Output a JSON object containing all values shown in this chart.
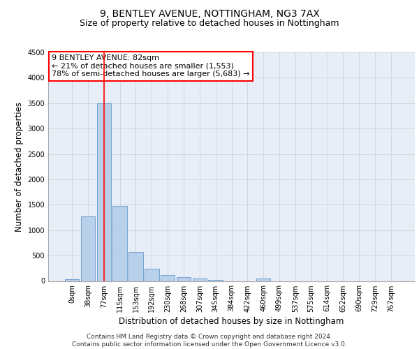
{
  "title": "9, BENTLEY AVENUE, NOTTINGHAM, NG3 7AX",
  "subtitle": "Size of property relative to detached houses in Nottingham",
  "xlabel": "Distribution of detached houses by size in Nottingham",
  "ylabel": "Number of detached properties",
  "bar_labels": [
    "0sqm",
    "38sqm",
    "77sqm",
    "115sqm",
    "153sqm",
    "192sqm",
    "230sqm",
    "268sqm",
    "307sqm",
    "345sqm",
    "384sqm",
    "422sqm",
    "460sqm",
    "499sqm",
    "537sqm",
    "575sqm",
    "614sqm",
    "652sqm",
    "690sqm",
    "729sqm",
    "767sqm"
  ],
  "bar_values": [
    30,
    1270,
    3500,
    1480,
    570,
    235,
    110,
    75,
    45,
    20,
    0,
    0,
    50,
    0,
    0,
    0,
    0,
    0,
    0,
    0,
    0
  ],
  "bar_color": "#b8d0ea",
  "bar_edge_color": "#6699cc",
  "background_color": "#e8eef8",
  "grid_color": "#cccccc",
  "vline_color": "#333333",
  "annotation_box_text": "9 BENTLEY AVENUE: 82sqm\n← 21% of detached houses are smaller (1,553)\n78% of semi-detached houses are larger (5,683) →",
  "ylim": [
    0,
    4500
  ],
  "yticks": [
    0,
    500,
    1000,
    1500,
    2000,
    2500,
    3000,
    3500,
    4000,
    4500
  ],
  "footer_line1": "Contains HM Land Registry data © Crown copyright and database right 2024.",
  "footer_line2": "Contains public sector information licensed under the Open Government Licence v3.0.",
  "title_fontsize": 10,
  "subtitle_fontsize": 9,
  "axis_label_fontsize": 8.5,
  "tick_fontsize": 7,
  "annotation_fontsize": 8,
  "footer_fontsize": 6.5
}
